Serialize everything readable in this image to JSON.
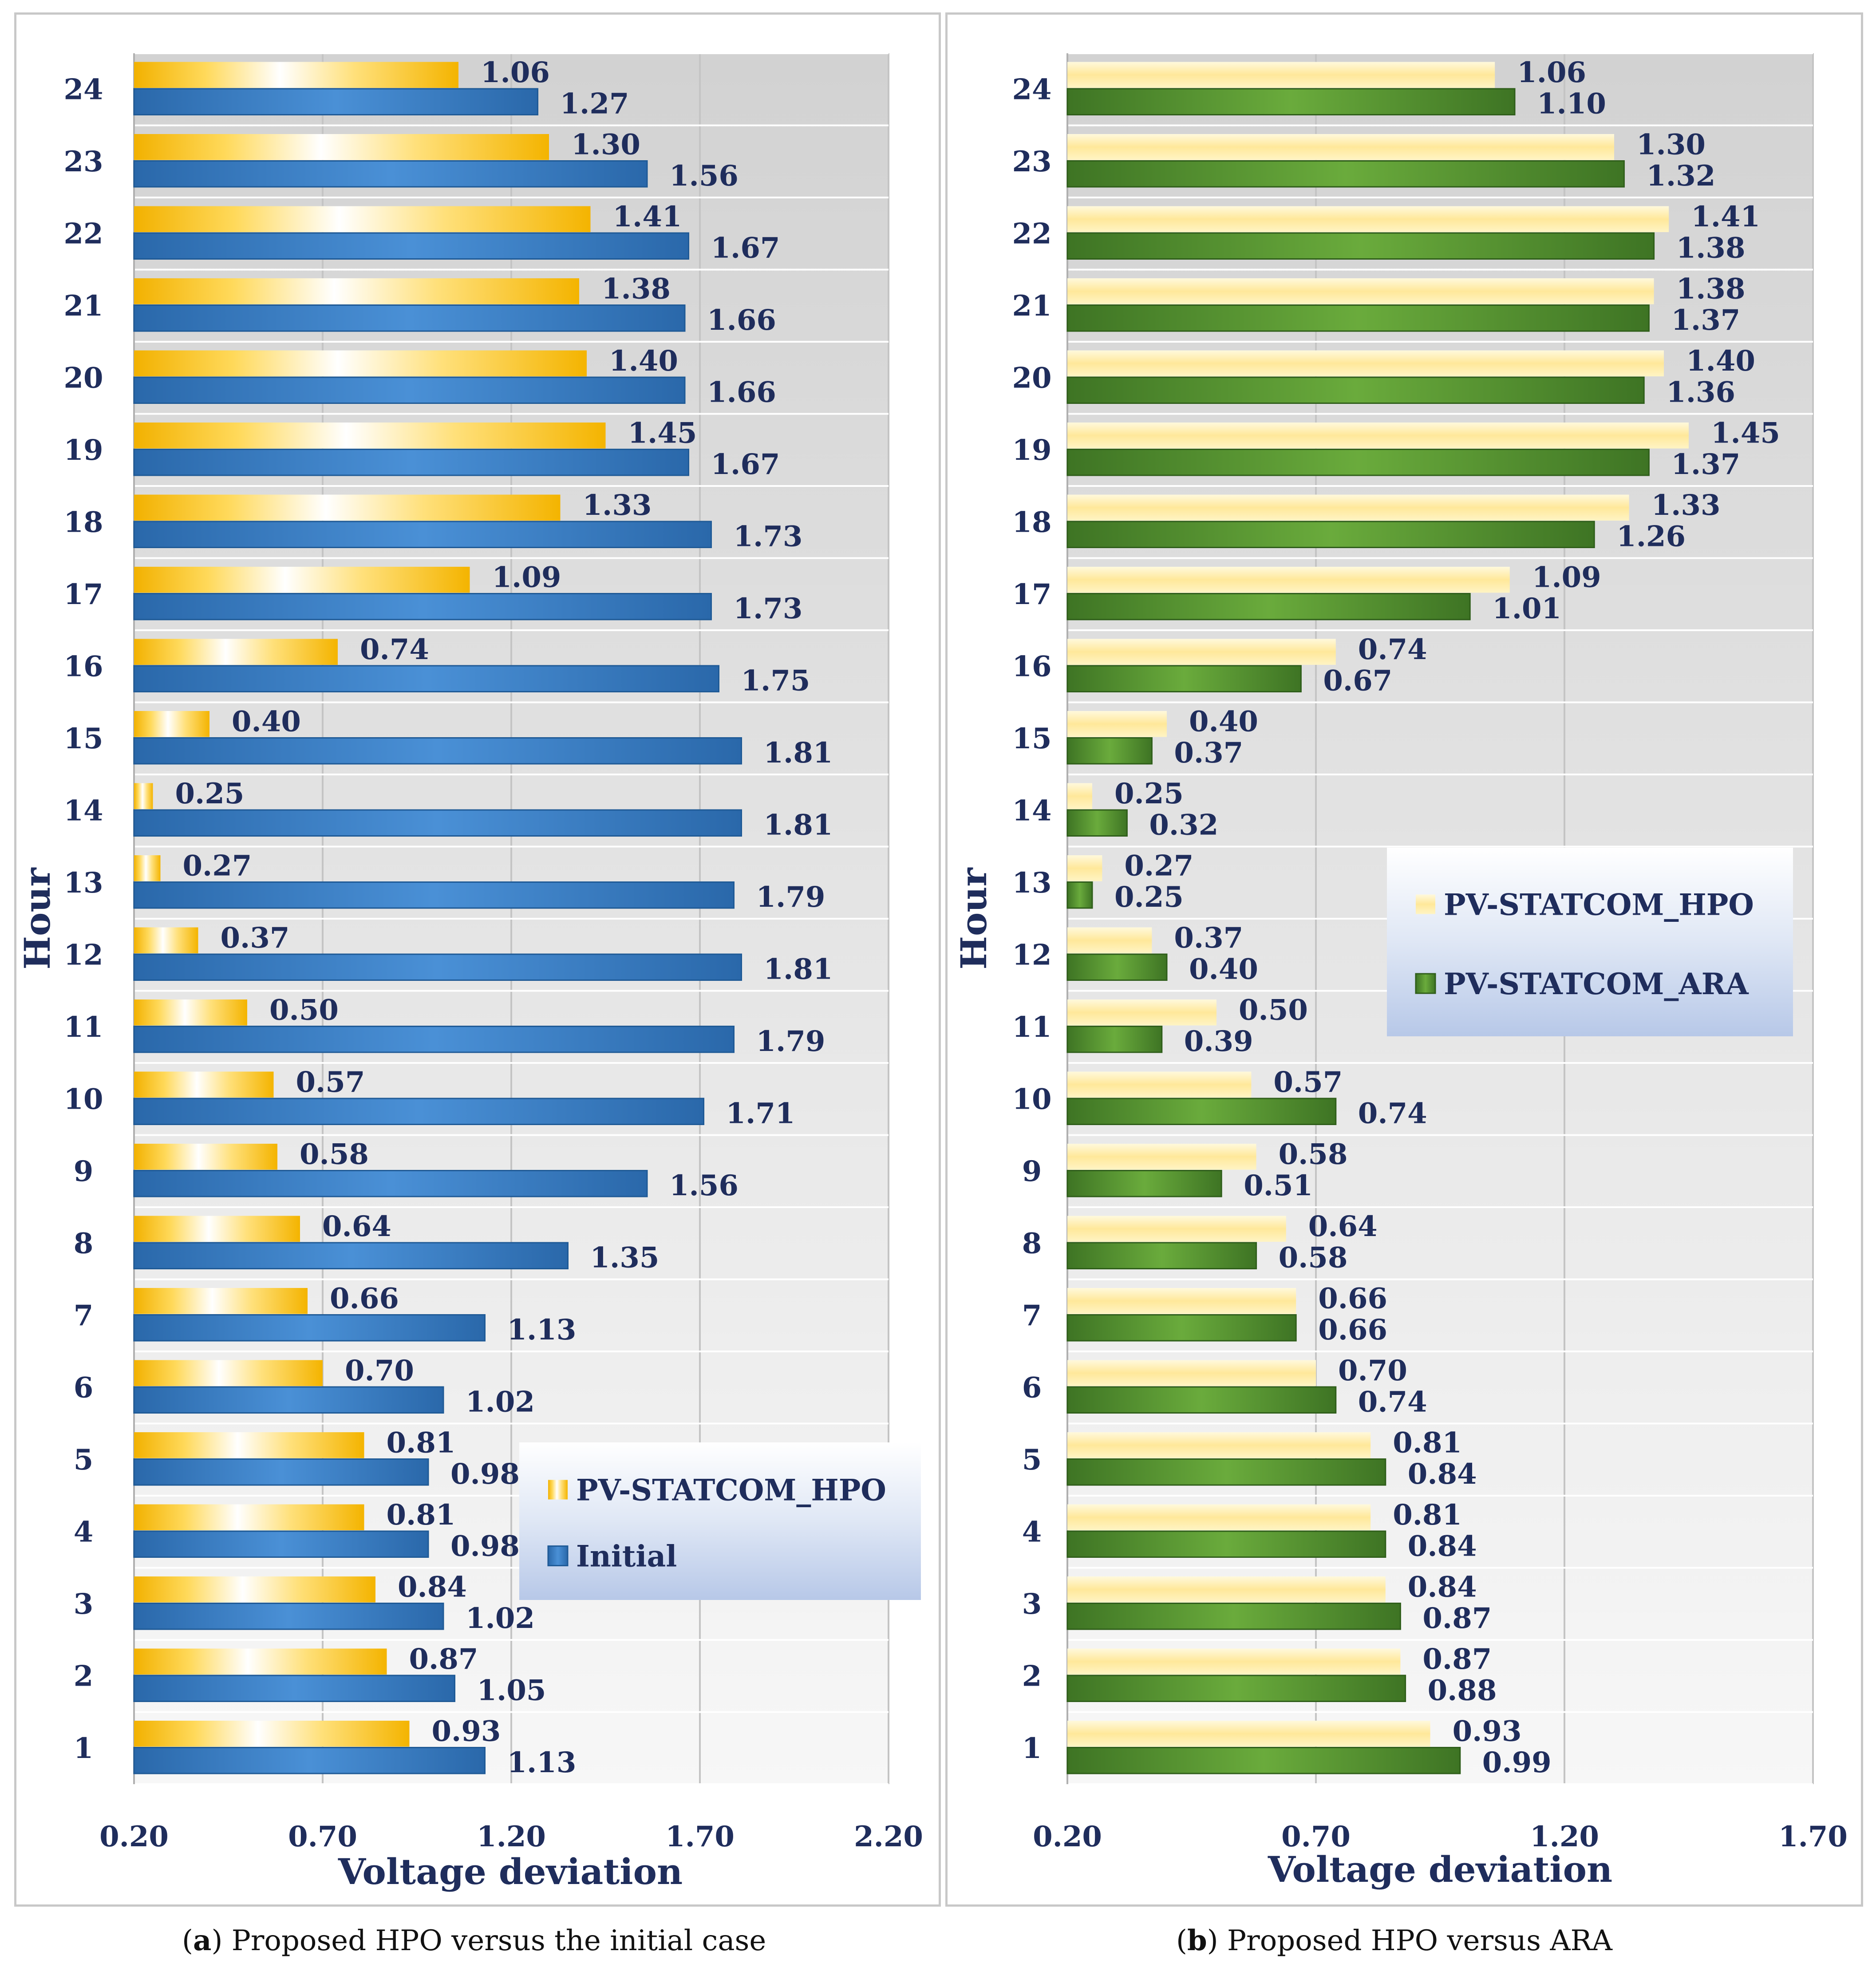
{
  "colors": {
    "hpo_gold": "#f7b500",
    "hpo_light": "#fff0a8",
    "initial_blue": "#2e75b6",
    "ara_green": "#4e8a2e",
    "label_navy": "#1f2d5c",
    "legend_bg": "#c9d7ee"
  },
  "captions": [
    {
      "letter": "a",
      "text": ") Proposed HPO versus the initial case",
      "open": "("
    },
    {
      "letter": "b",
      "text": ") Proposed HPO versus ARA",
      "open": "("
    }
  ],
  "chart_data": [
    {
      "type": "bar",
      "orientation": "horizontal",
      "title": "",
      "xlabel": "Voltage deviation",
      "ylabel": "Hour",
      "xlim": [
        0.2,
        2.2
      ],
      "xticks": [
        "0.20",
        "0.70",
        "1.20",
        "1.70",
        "2.20"
      ],
      "categories": [
        "1",
        "2",
        "3",
        "4",
        "5",
        "6",
        "7",
        "8",
        "9",
        "10",
        "11",
        "12",
        "13",
        "14",
        "15",
        "16",
        "17",
        "18",
        "19",
        "20",
        "21",
        "22",
        "23",
        "24"
      ],
      "series": [
        {
          "name": "PV-STATCOM_HPO",
          "style": "hpo",
          "values": [
            0.93,
            0.87,
            0.84,
            0.81,
            0.81,
            0.7,
            0.66,
            0.64,
            0.58,
            0.57,
            0.5,
            0.37,
            0.27,
            0.25,
            0.4,
            0.74,
            1.09,
            1.33,
            1.45,
            1.4,
            1.38,
            1.41,
            1.3,
            1.06
          ],
          "labels": [
            "0.93",
            "0.87",
            "0.84",
            "0.81",
            "0.81",
            "0.70",
            "0.66",
            "0.64",
            "0.58",
            "0.57",
            "0.50",
            "0.37",
            "0.27",
            "0.25",
            "0.40",
            "0.74",
            "1.09",
            "1.33",
            "1.45",
            "1.40",
            "1.38",
            "1.41",
            "1.30",
            "1.06"
          ]
        },
        {
          "name": "Initial",
          "style": "initial",
          "values": [
            1.13,
            1.05,
            1.02,
            0.98,
            0.98,
            1.02,
            1.13,
            1.35,
            1.56,
            1.71,
            1.79,
            1.81,
            1.79,
            1.81,
            1.81,
            1.75,
            1.73,
            1.73,
            1.67,
            1.66,
            1.66,
            1.67,
            1.56,
            1.27
          ],
          "labels": [
            "1.13",
            "1.05",
            "1.02",
            "0.98",
            "0.98",
            "1.02",
            "1.13",
            "1.35",
            "1.56",
            "1.71",
            "1.79",
            "1.81",
            "1.79",
            "1.81",
            "1.81",
            "1.75",
            "1.73",
            "1.73",
            "1.67",
            "1.66",
            "1.66",
            "1.67",
            "1.56",
            "1.27"
          ]
        }
      ],
      "legend": {
        "entries": [
          "PV-STATCOM_HPO",
          "Initial"
        ],
        "placement": "lower-right"
      }
    },
    {
      "type": "bar",
      "orientation": "horizontal",
      "title": "",
      "xlabel": "Voltage deviation",
      "ylabel": "Hour",
      "xlim": [
        0.2,
        1.7
      ],
      "xticks": [
        "0.20",
        "0.70",
        "1.20",
        "1.70"
      ],
      "categories": [
        "1",
        "2",
        "3",
        "4",
        "5",
        "6",
        "7",
        "8",
        "9",
        "10",
        "11",
        "12",
        "13",
        "14",
        "15",
        "16",
        "17",
        "18",
        "19",
        "20",
        "21",
        "22",
        "23",
        "24"
      ],
      "series": [
        {
          "name": "PV-STATCOM_HPO",
          "style": "hpo",
          "values": [
            0.93,
            0.87,
            0.84,
            0.81,
            0.81,
            0.7,
            0.66,
            0.64,
            0.58,
            0.57,
            0.5,
            0.37,
            0.27,
            0.25,
            0.4,
            0.74,
            1.09,
            1.33,
            1.45,
            1.4,
            1.38,
            1.41,
            1.3,
            1.06
          ],
          "labels": [
            "0.93",
            "0.87",
            "0.84",
            "0.81",
            "0.81",
            "0.70",
            "0.66",
            "0.64",
            "0.58",
            "0.57",
            "0.50",
            "0.37",
            "0.27",
            "0.25",
            "0.40",
            "0.74",
            "1.09",
            "1.33",
            "1.45",
            "1.40",
            "1.38",
            "1.41",
            "1.30",
            "1.06"
          ]
        },
        {
          "name": "PV-STATCOM_ARA",
          "style": "ara",
          "values": [
            0.99,
            0.88,
            0.87,
            0.84,
            0.84,
            0.74,
            0.66,
            0.58,
            0.51,
            0.74,
            0.39,
            0.4,
            0.25,
            0.32,
            0.37,
            0.67,
            1.01,
            1.26,
            1.37,
            1.36,
            1.37,
            1.38,
            1.32,
            1.1
          ],
          "labels": [
            "0.99",
            "0.88",
            "0.87",
            "0.84",
            "0.84",
            "0.74",
            "0.66",
            "0.58",
            "0.51",
            "0.74",
            "0.39",
            "0.40",
            "0.25",
            "0.32",
            "0.37",
            "0.67",
            "1.01",
            "1.26",
            "1.37",
            "1.36",
            "1.37",
            "1.38",
            "1.32",
            "1.10"
          ]
        }
      ],
      "legend": {
        "entries": [
          "PV-STATCOM_HPO",
          "PV-STATCOM_ARA"
        ],
        "placement": "center-right"
      }
    }
  ]
}
